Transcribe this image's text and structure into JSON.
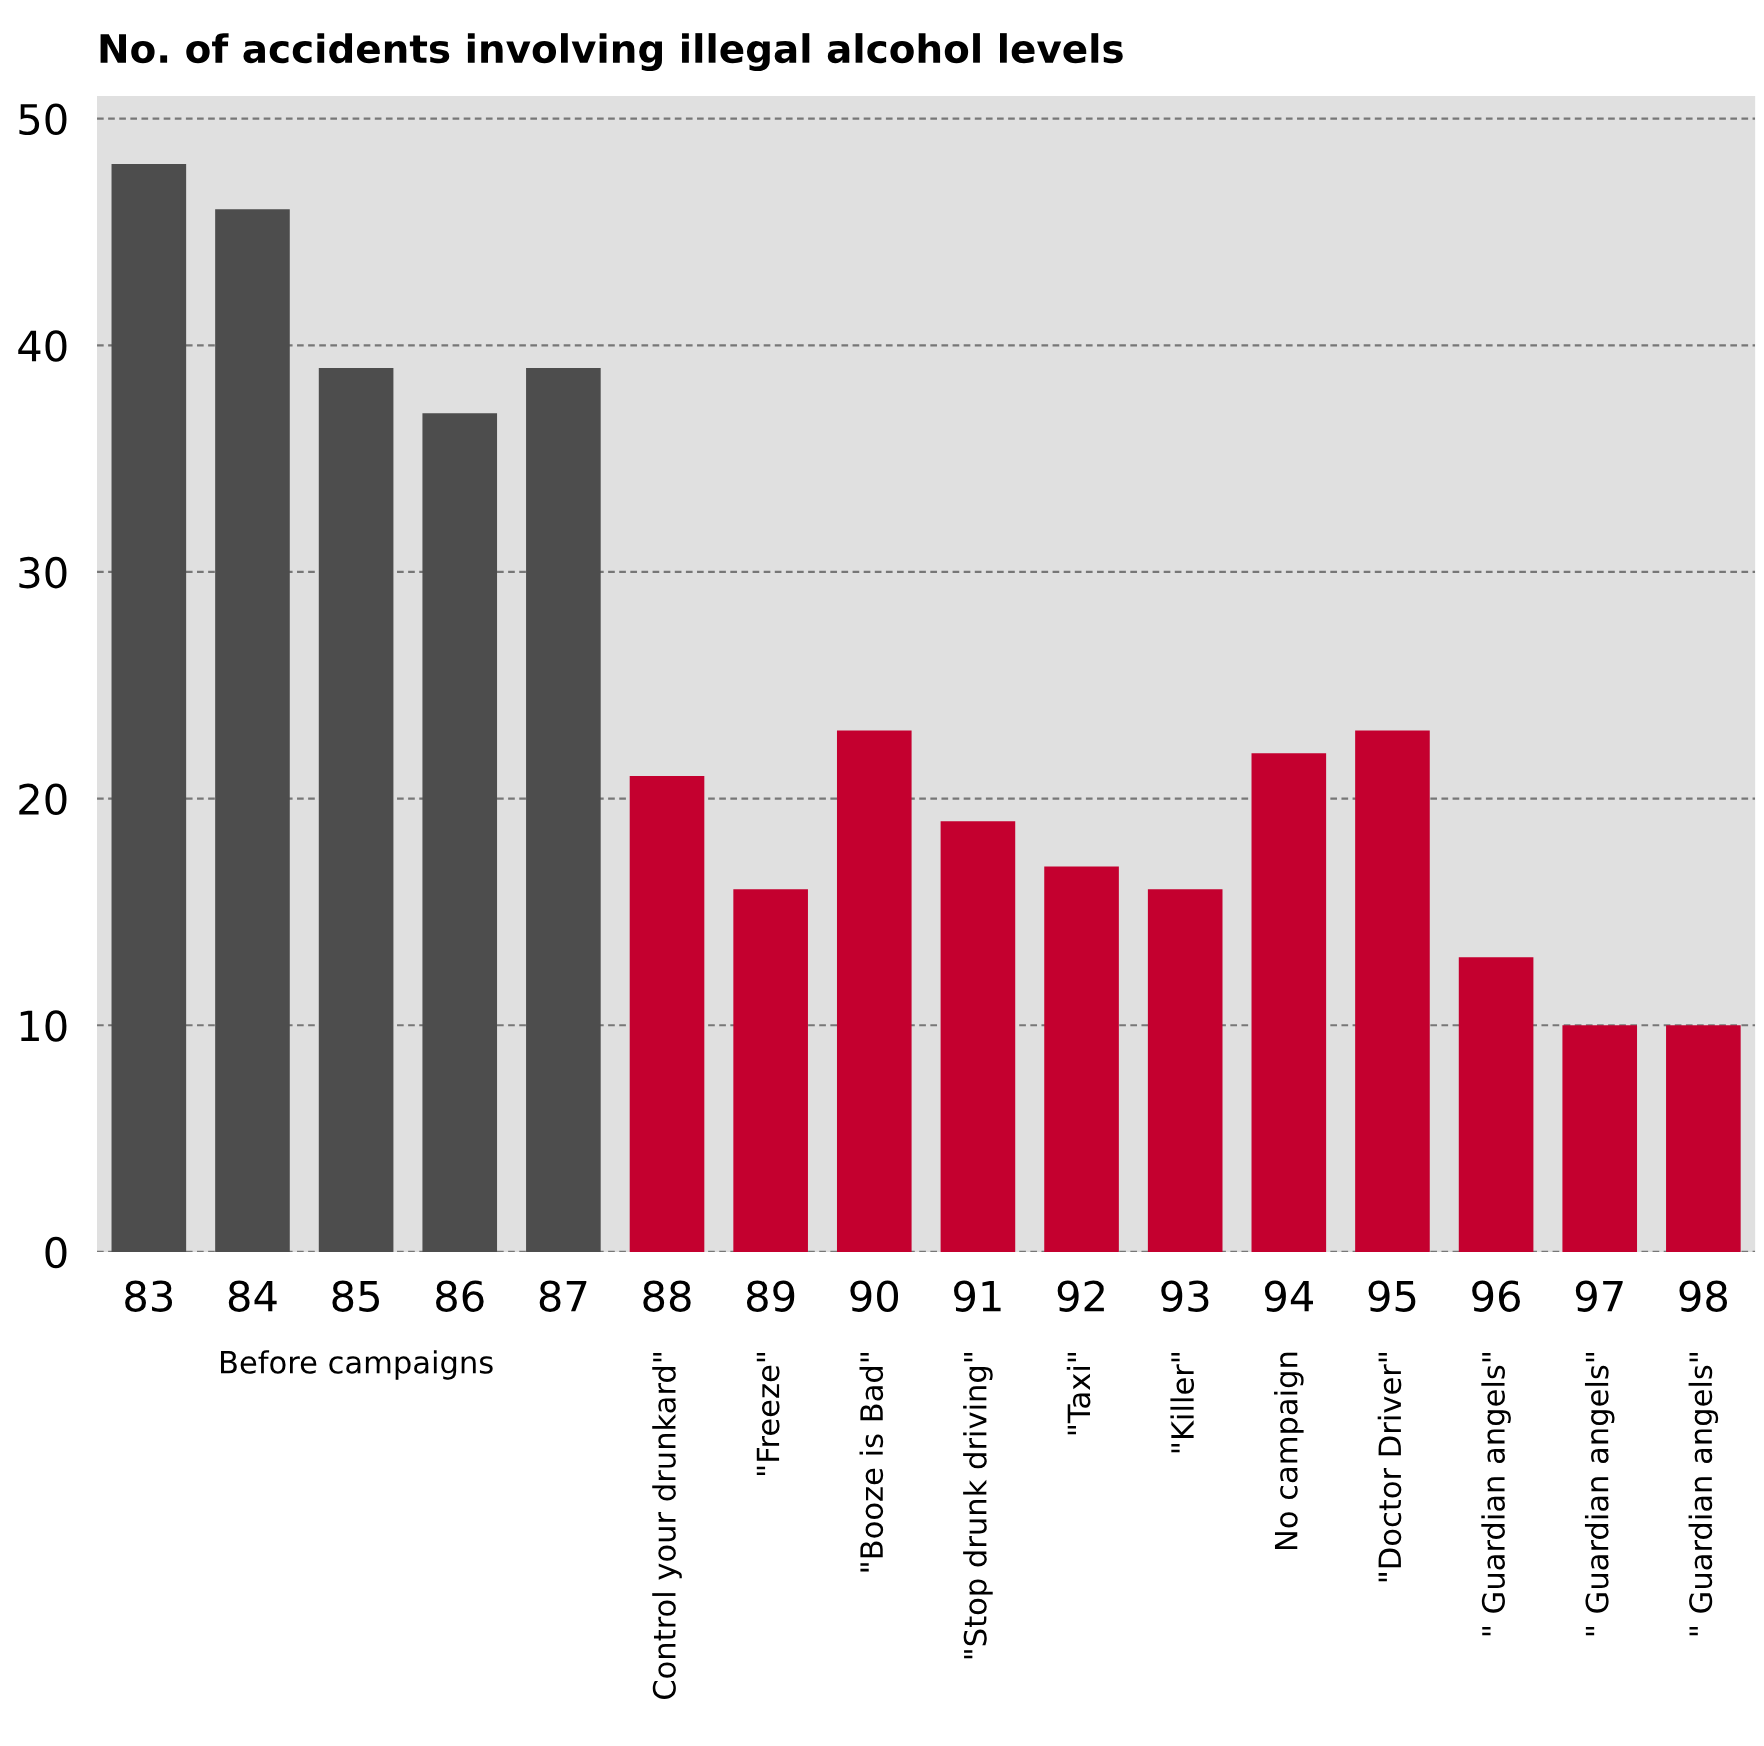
{
  "chart_data": {
    "type": "bar",
    "title": "No. of accidents involving illegal alcohol levels",
    "categories": [
      "83",
      "84",
      "85",
      "86",
      "87",
      "88",
      "89",
      "90",
      "91",
      "92",
      "93",
      "94",
      "95",
      "96",
      "97",
      "98"
    ],
    "values": [
      48,
      46,
      39,
      37,
      39,
      21,
      16,
      23,
      19,
      17,
      16,
      22,
      23,
      13,
      10,
      10
    ],
    "colors": [
      "#4d4d4d",
      "#4d4d4d",
      "#4d4d4d",
      "#4d4d4d",
      "#4d4d4d",
      "#c4002f",
      "#c4002f",
      "#c4002f",
      "#c4002f",
      "#c4002f",
      "#c4002f",
      "#c4002f",
      "#c4002f",
      "#c4002f",
      "#c4002f",
      "#c4002f"
    ],
    "ylim": [
      0,
      51
    ],
    "yticks": [
      0,
      10,
      20,
      30,
      40,
      50
    ],
    "grid": "y",
    "legend": false,
    "annotations": [
      "Before campaigns",
      "Control your drunkard\"",
      "\"Freeze\"",
      "\"Booze is Bad\"",
      "\"Stop drunk driving\"",
      "\"Taxi\"",
      "\"Killer\"",
      "No campaign",
      "\"Doctor Driver\"",
      "\" Guardian angels\"",
      "\" Guardian angels\"",
      "\" Guardian angels\""
    ]
  }
}
